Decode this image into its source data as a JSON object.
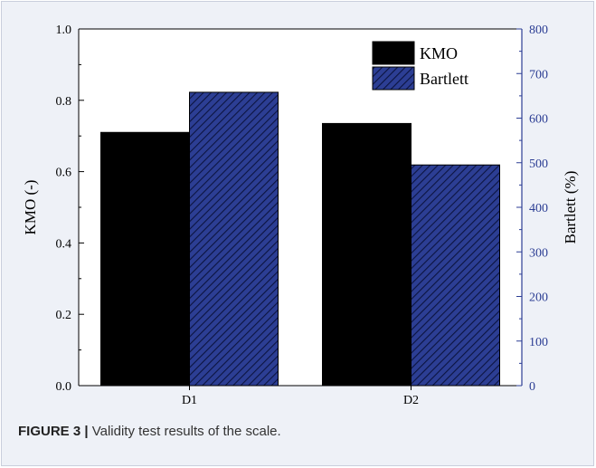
{
  "caption": {
    "label": "FIGURE 3 |",
    "text": " Validity test results of the scale."
  },
  "colors": {
    "kmo_fill": "#000000",
    "bartlett_fill": "#2c3e94",
    "bartlett_hatch": "#0c1440",
    "right_axis": "#2c3e94",
    "panel_bg": "#eef1f7"
  },
  "chart_data": {
    "type": "bar",
    "categories": [
      "D1",
      "D2"
    ],
    "series": [
      {
        "name": "KMO",
        "axis": "left",
        "values": [
          0.71,
          0.735
        ]
      },
      {
        "name": "Bartlett",
        "axis": "right",
        "values": [
          658,
          495
        ]
      }
    ],
    "ylabel": "KMO (-)",
    "ylabel_right": "Bartlett (%)",
    "ylim": [
      0,
      1.0
    ],
    "ylim_right": [
      0,
      800
    ],
    "yticks": [
      "0.0",
      "0.2",
      "0.4",
      "0.6",
      "0.8",
      "1.0"
    ],
    "yticks_right": [
      "0",
      "100",
      "200",
      "300",
      "400",
      "500",
      "600",
      "700",
      "800"
    ],
    "legend": [
      "KMO",
      "Bartlett"
    ],
    "legend_position": "top-right",
    "grid": false
  }
}
